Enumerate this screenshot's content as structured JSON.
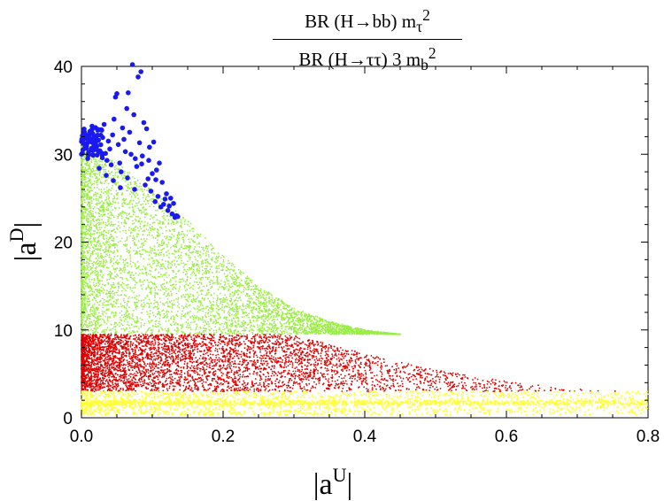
{
  "title": {
    "numerator": {
      "text": "BR (H→bb) m",
      "sub": "τ",
      "sup": "2"
    },
    "denominator": {
      "text": "BR (H→ττ) 3 m",
      "sub": "b",
      "sup": "2"
    }
  },
  "chart_data": {
    "type": "scatter",
    "xlabel": {
      "base": "|a",
      "sup": "U",
      "end": "|"
    },
    "ylabel": {
      "base": "|a",
      "sup": "D",
      "end": "|"
    },
    "xlim": [
      0,
      0.8
    ],
    "ylim": [
      0,
      40
    ],
    "x_ticks": [
      "0.0",
      "0.2",
      "0.4",
      "0.6",
      "0.8"
    ],
    "y_ticks": [
      "0",
      "10",
      "20",
      "30",
      "40"
    ],
    "grid": false,
    "legend": "none",
    "series": [
      {
        "color": "#ffff33",
        "region": {
          "y_range": [
            0.3,
            3.0
          ],
          "x_max": 0.8
        },
        "points": [
          [
            0.01,
            1.2
          ],
          [
            0.02,
            2.5
          ],
          [
            0.05,
            1.8
          ],
          [
            0.1,
            2.1
          ],
          [
            0.15,
            1.6
          ],
          [
            0.2,
            2.0
          ],
          [
            0.3,
            1.5
          ],
          [
            0.4,
            2.2
          ],
          [
            0.5,
            1.3
          ],
          [
            0.6,
            1.9
          ],
          [
            0.7,
            1.0
          ],
          [
            0.78,
            0.6
          ]
        ]
      },
      {
        "color": "#dd0000",
        "region": {
          "y_range": [
            3.0,
            9.5
          ],
          "x_max_at_y3": 0.79,
          "x_max_at_y9_5": 0.3
        },
        "points": [
          [
            0.01,
            9.3
          ],
          [
            0.02,
            5.0
          ],
          [
            0.05,
            8.0
          ],
          [
            0.1,
            6.5
          ],
          [
            0.2,
            7.0
          ],
          [
            0.3,
            6.0
          ],
          [
            0.4,
            5.2
          ],
          [
            0.5,
            4.8
          ],
          [
            0.6,
            4.0
          ],
          [
            0.7,
            3.5
          ],
          [
            0.79,
            2.9
          ]
        ]
      },
      {
        "color": "#99ee44",
        "region": {
          "y_range": [
            9.5,
            31
          ],
          "envelope": [
            [
              0.0,
              31
            ],
            [
              0.05,
              29
            ],
            [
              0.1,
              26
            ],
            [
              0.15,
              22.5
            ],
            [
              0.2,
              18.5
            ],
            [
              0.25,
              15
            ],
            [
              0.3,
              12.5
            ],
            [
              0.35,
              11
            ],
            [
              0.4,
              10
            ],
            [
              0.45,
              9.5
            ]
          ]
        },
        "points": [
          [
            0.01,
            28
          ],
          [
            0.02,
            20
          ],
          [
            0.05,
            25
          ],
          [
            0.08,
            22
          ],
          [
            0.1,
            18
          ],
          [
            0.15,
            16
          ],
          [
            0.2,
            14
          ],
          [
            0.25,
            12
          ],
          [
            0.3,
            11
          ],
          [
            0.4,
            9.8
          ]
        ]
      },
      {
        "color": "#1a1aee",
        "points": [
          [
            0.002,
            30.5
          ],
          [
            0.004,
            32.1
          ],
          [
            0.006,
            31.0
          ],
          [
            0.008,
            31.8
          ],
          [
            0.01,
            30.2
          ],
          [
            0.012,
            32.6
          ],
          [
            0.014,
            31.4
          ],
          [
            0.016,
            30.7
          ],
          [
            0.018,
            32.0
          ],
          [
            0.02,
            31.2
          ],
          [
            0.022,
            29.9
          ],
          [
            0.024,
            31.6
          ],
          [
            0.026,
            30.4
          ],
          [
            0.028,
            32.8
          ],
          [
            0.03,
            31.9
          ],
          [
            0.032,
            33.4
          ],
          [
            0.034,
            30.1
          ],
          [
            0.036,
            29.3
          ],
          [
            0.038,
            31.5
          ],
          [
            0.04,
            30.6
          ],
          [
            0.042,
            28.8
          ],
          [
            0.044,
            32.2
          ],
          [
            0.046,
            34.0
          ],
          [
            0.048,
            36.5
          ],
          [
            0.05,
            36.9
          ],
          [
            0.052,
            31.1
          ],
          [
            0.054,
            29.0
          ],
          [
            0.056,
            28.0
          ],
          [
            0.058,
            33.0
          ],
          [
            0.06,
            31.7
          ],
          [
            0.062,
            30.3
          ],
          [
            0.064,
            35.2
          ],
          [
            0.066,
            37.0
          ],
          [
            0.068,
            32.5
          ],
          [
            0.07,
            30.0
          ],
          [
            0.072,
            40.2
          ],
          [
            0.074,
            34.5
          ],
          [
            0.076,
            29.5
          ],
          [
            0.078,
            28.6
          ],
          [
            0.08,
            38.8
          ],
          [
            0.082,
            31.3
          ],
          [
            0.084,
            39.4
          ],
          [
            0.086,
            29.8
          ],
          [
            0.088,
            33.6
          ],
          [
            0.09,
            26.5
          ],
          [
            0.092,
            32.9
          ],
          [
            0.094,
            27.2
          ],
          [
            0.096,
            30.8
          ],
          [
            0.098,
            25.8
          ],
          [
            0.1,
            27.8
          ],
          [
            0.102,
            31.4
          ],
          [
            0.104,
            24.6
          ],
          [
            0.106,
            28.2
          ],
          [
            0.108,
            25.2
          ],
          [
            0.11,
            29.0
          ],
          [
            0.112,
            24.0
          ],
          [
            0.114,
            26.8
          ],
          [
            0.116,
            24.3
          ],
          [
            0.118,
            24.9
          ],
          [
            0.12,
            25.5
          ],
          [
            0.122,
            23.6
          ],
          [
            0.124,
            24.1
          ],
          [
            0.126,
            25.0
          ],
          [
            0.128,
            23.2
          ],
          [
            0.13,
            24.4
          ],
          [
            0.132,
            22.8
          ],
          [
            0.134,
            23.0
          ],
          [
            0.136,
            22.9
          ],
          [
            0.015,
            33.2
          ],
          [
            0.025,
            28.4
          ],
          [
            0.035,
            27.6
          ],
          [
            0.045,
            27.0
          ],
          [
            0.055,
            26.2
          ],
          [
            0.065,
            27.3
          ],
          [
            0.075,
            26.0
          ],
          [
            0.085,
            28.9
          ],
          [
            0.095,
            29.3
          ],
          [
            0.105,
            27.1
          ]
        ]
      }
    ]
  }
}
